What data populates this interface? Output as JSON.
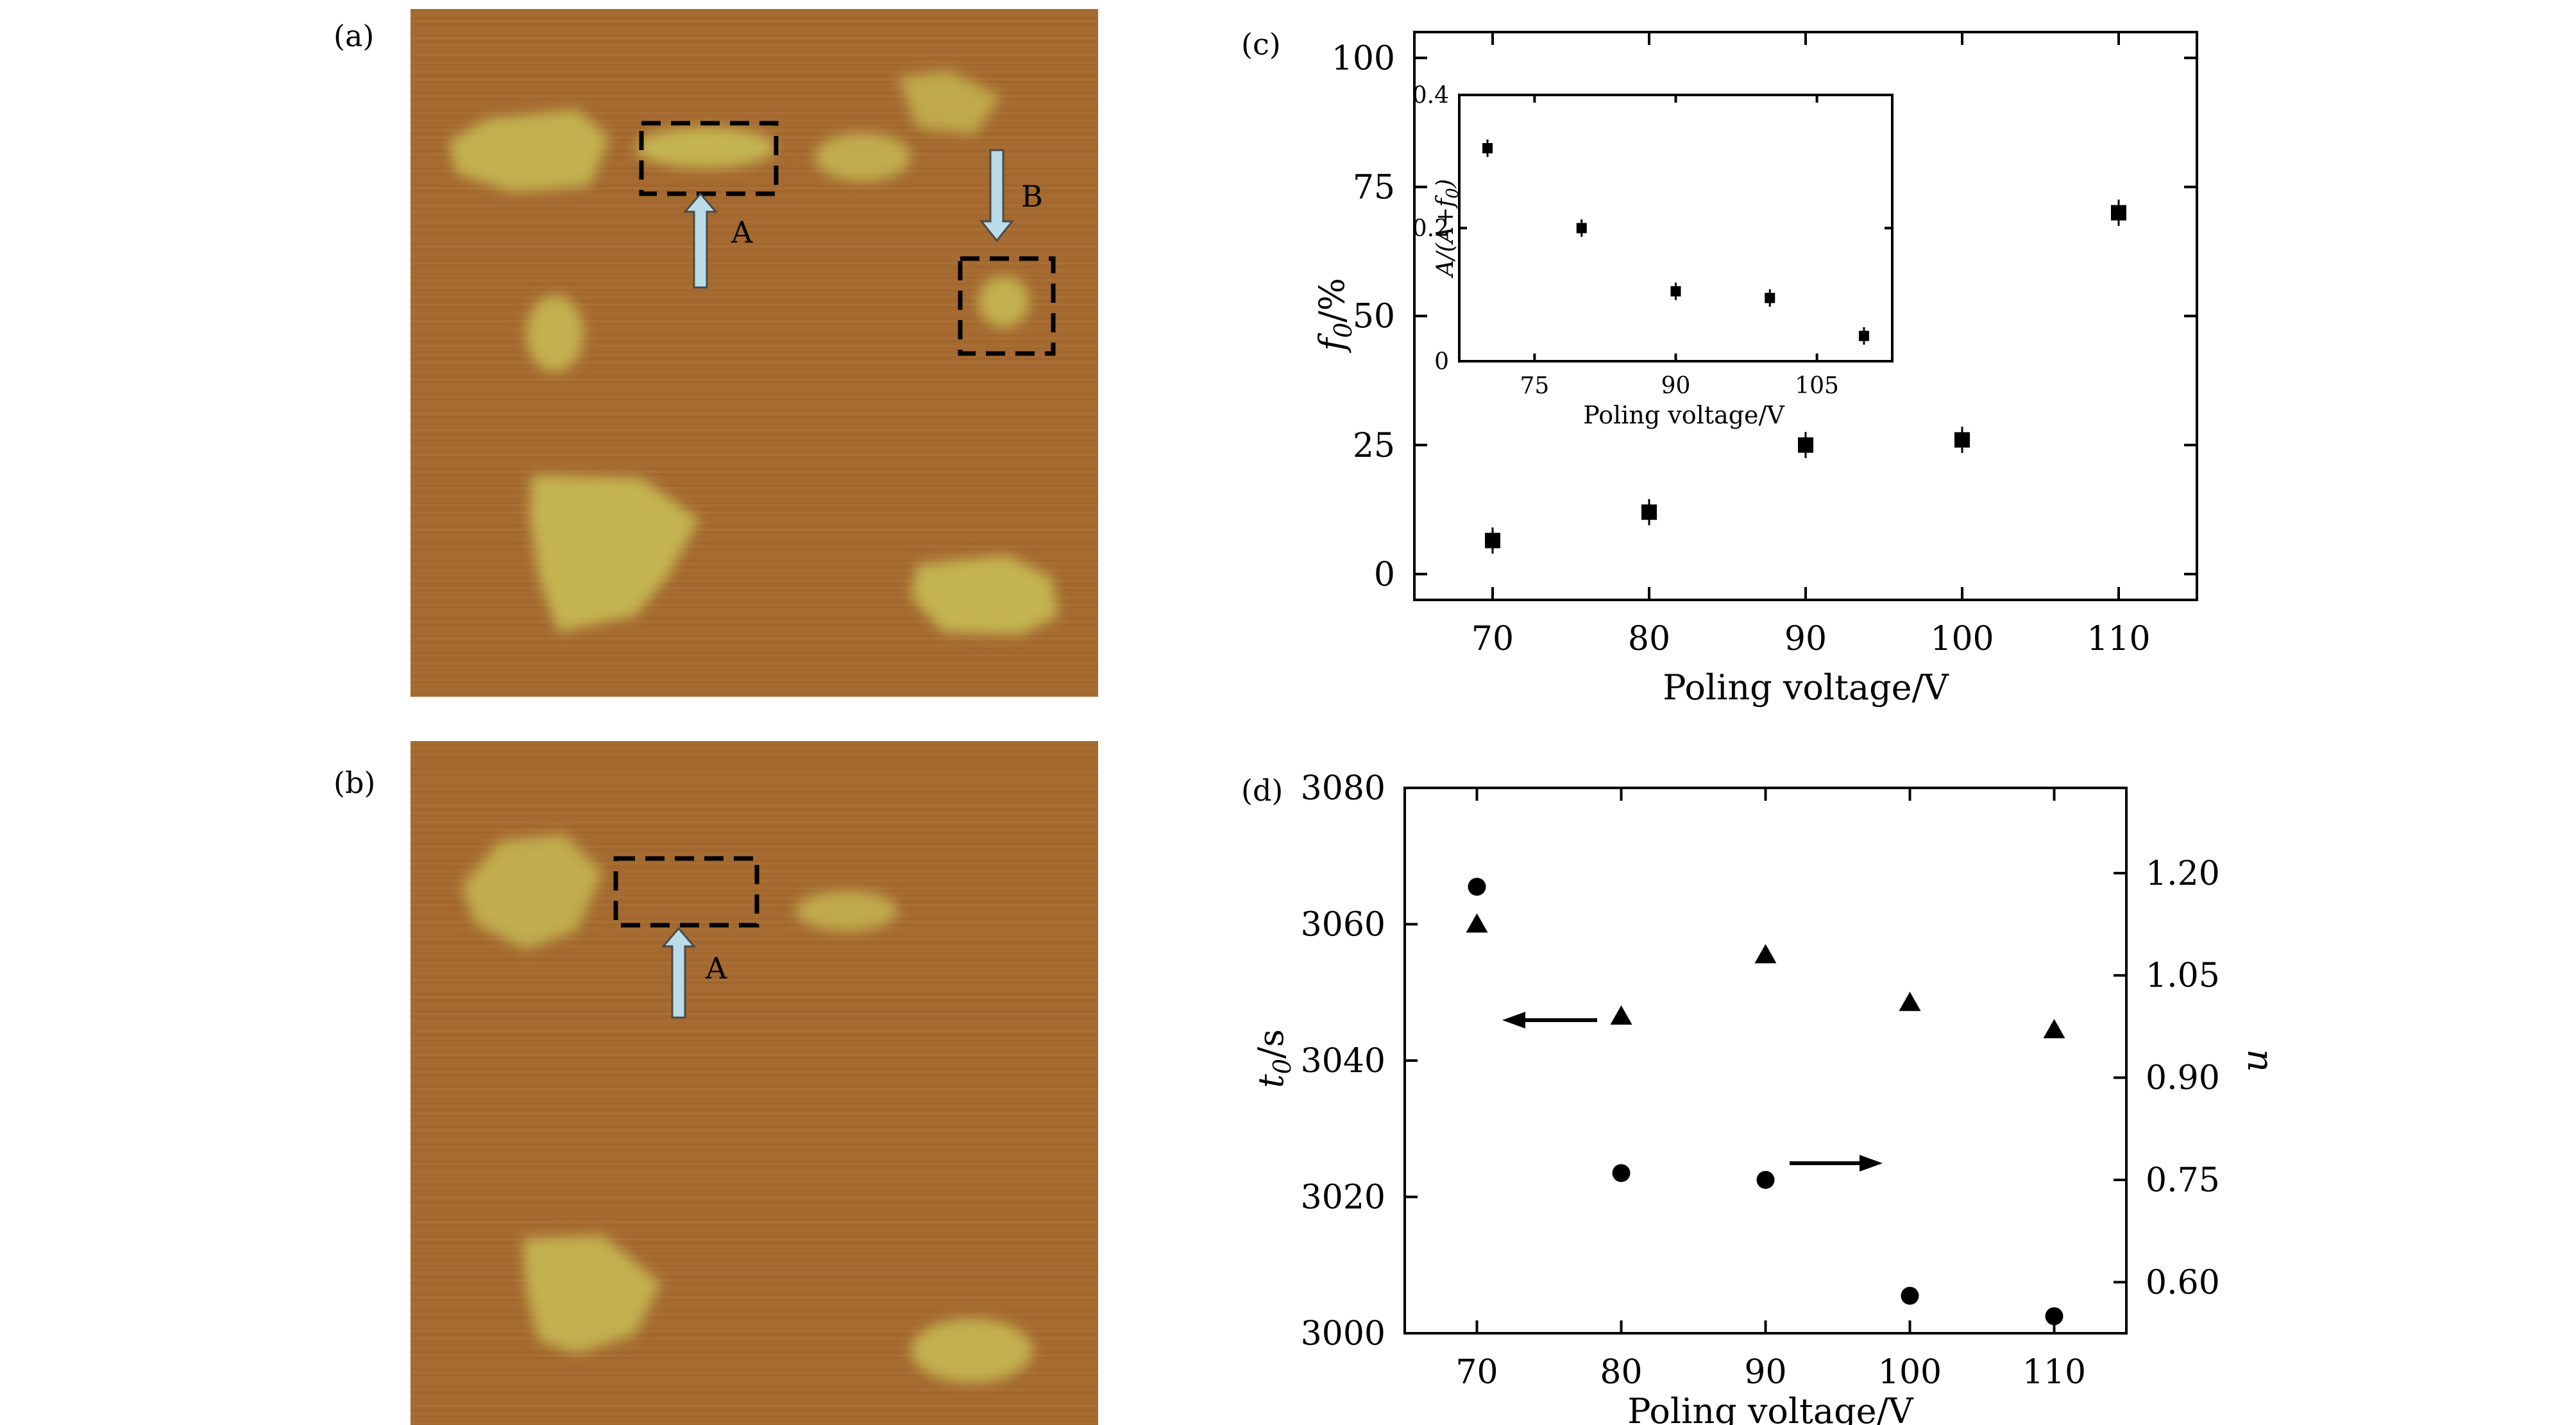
{
  "panels": {
    "a": {
      "label": "(a)",
      "marker_A": "A",
      "marker_B": "B"
    },
    "b": {
      "label": "(b)",
      "marker_A": "A"
    },
    "c": {
      "label": "(c)"
    },
    "d": {
      "label": "(d)"
    }
  },
  "colors": {
    "afm_background": "#a56a30",
    "afm_domain": "#c8bd55",
    "arrow_fill": "#b9dde8",
    "marker": "#000000"
  },
  "chart_data": [
    {
      "id": "c-main",
      "type": "scatter",
      "xlabel": "Poling voltage/V",
      "ylabel": "f0/%",
      "xlim": [
        65,
        115
      ],
      "ylim": [
        -5,
        105
      ],
      "xticks": [
        70,
        80,
        90,
        100,
        110
      ],
      "yticks": [
        0,
        25,
        50,
        75,
        100
      ],
      "x": [
        70,
        80,
        90,
        100,
        110
      ],
      "y": [
        6.5,
        12,
        25,
        26,
        70
      ],
      "marker": "square"
    },
    {
      "id": "c-inset",
      "type": "scatter",
      "xlabel": "Poling voltage/V",
      "ylabel": "A/(A+f0)",
      "xlim": [
        67,
        113
      ],
      "ylim": [
        0,
        0.4
      ],
      "xticks": [
        75,
        90,
        105
      ],
      "yticks": [
        0,
        0.2,
        0.4
      ],
      "ytick_labels": [
        "0",
        "0.2",
        "0.4"
      ],
      "x": [
        70,
        80,
        90,
        100,
        110
      ],
      "y": [
        0.32,
        0.2,
        0.105,
        0.095,
        0.038
      ],
      "marker": "square"
    },
    {
      "id": "d",
      "type": "scatter",
      "xlabel": "Poling voltage/V",
      "ylabel": "t0/s",
      "ylabel_right": "n",
      "xlim": [
        65,
        115
      ],
      "ylim": [
        3000,
        3080
      ],
      "ylim_right": [
        0.525,
        1.325
      ],
      "xticks": [
        70,
        80,
        90,
        100,
        110
      ],
      "yticks": [
        3000,
        3020,
        3040,
        3060,
        3080
      ],
      "yticks_right": [
        0.6,
        0.75,
        0.9,
        1.05,
        1.2
      ],
      "ytick_labels_right": [
        "0.60",
        "0.75",
        "0.90",
        "1.05",
        "1.20"
      ],
      "series": [
        {
          "axis": "left",
          "marker": "triangle",
          "x": [
            70,
            80,
            90,
            100,
            110
          ],
          "y": [
            3060,
            3046.5,
            3055.5,
            3048.5,
            3044.5
          ]
        },
        {
          "axis": "right",
          "marker": "circle",
          "x": [
            70,
            80,
            90,
            100,
            110
          ],
          "y": [
            1.18,
            0.76,
            0.75,
            0.58,
            0.55
          ]
        }
      ]
    }
  ]
}
